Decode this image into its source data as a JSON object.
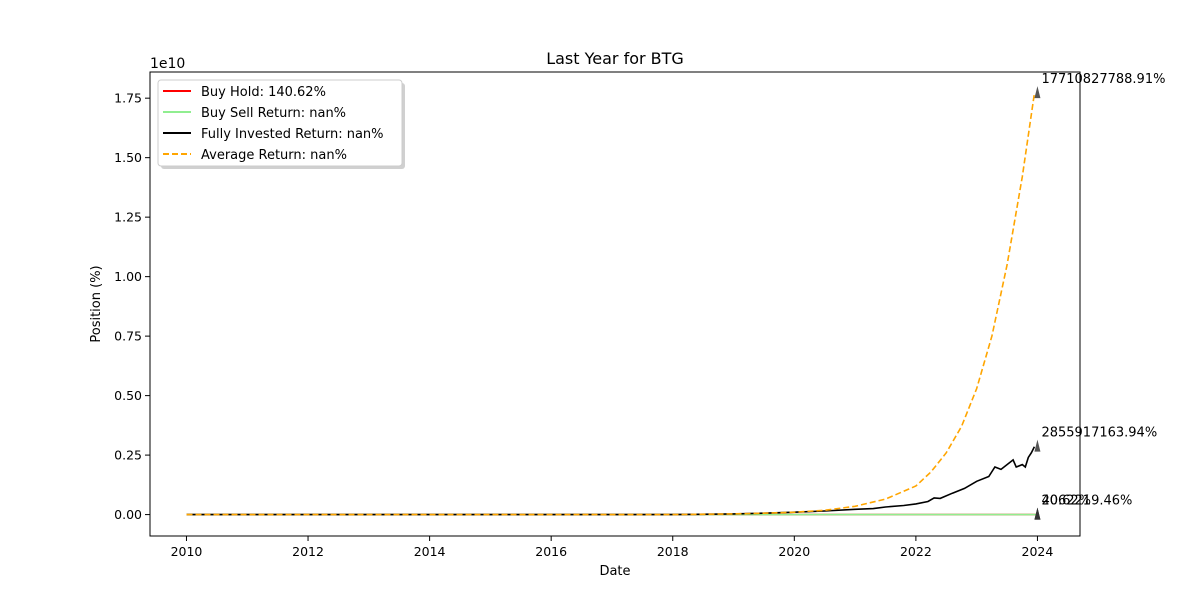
{
  "chart_data": {
    "type": "line",
    "title": "Last Year for BTG",
    "xlabel": "Date",
    "ylabel": "Position (%)",
    "y_scale_label": "1e10",
    "xlim": [
      2009.4,
      2024.7
    ],
    "ylim": [
      -0.09,
      1.86
    ],
    "y_unit_multiplier": "1e10",
    "x_ticks": [
      2010,
      2012,
      2014,
      2016,
      2018,
      2020,
      2022,
      2024
    ],
    "y_ticks": [
      0.0,
      0.25,
      0.5,
      0.75,
      1.0,
      1.25,
      1.5,
      1.75
    ],
    "y_tick_labels": [
      "0.00",
      "0.25",
      "0.50",
      "0.75",
      "1.00",
      "1.25",
      "1.50",
      "1.75"
    ],
    "grid": false,
    "legend_position": "upper-left",
    "series": [
      {
        "name": "Buy Hold: 140.62%",
        "color": "#ff0000",
        "style": "solid",
        "x": [
          2010.0,
          2024.0
        ],
        "y": [
          0.0,
          0.0
        ]
      },
      {
        "name": "Buy Sell Return: nan%",
        "color": "#90ee90",
        "style": "solid",
        "x": [
          2010.0,
          2024.0
        ],
        "y": [
          0.0,
          0.0
        ]
      },
      {
        "name": "Fully Invested Return: nan%",
        "color": "#000000",
        "style": "solid",
        "x": [
          2010.0,
          2018.0,
          2019.0,
          2019.5,
          2020.0,
          2020.5,
          2021.0,
          2021.3,
          2021.5,
          2021.8,
          2022.0,
          2022.2,
          2022.3,
          2022.4,
          2022.6,
          2022.8,
          2023.0,
          2023.2,
          2023.3,
          2023.4,
          2023.6,
          2023.65,
          2023.75,
          2023.8,
          2023.85,
          2023.9,
          2023.95
        ],
        "y": [
          0.0,
          0.0,
          0.003,
          0.006,
          0.01,
          0.015,
          0.022,
          0.025,
          0.032,
          0.038,
          0.045,
          0.055,
          0.07,
          0.068,
          0.09,
          0.11,
          0.14,
          0.16,
          0.2,
          0.19,
          0.23,
          0.2,
          0.21,
          0.2,
          0.24,
          0.26,
          0.285
        ]
      },
      {
        "name": "Average Return: nan%",
        "color": "#ffa500",
        "style": "dashed",
        "x": [
          2010.0,
          2012.0,
          2014.0,
          2016.0,
          2018.0,
          2019.0,
          2019.5,
          2020.0,
          2020.5,
          2021.0,
          2021.5,
          2022.0,
          2022.25,
          2022.5,
          2022.75,
          2023.0,
          2023.25,
          2023.5,
          2023.75,
          2023.95
        ],
        "y": [
          0.0,
          0.0,
          0.0,
          0.0,
          0.0,
          0.003,
          0.006,
          0.01,
          0.018,
          0.035,
          0.065,
          0.12,
          0.18,
          0.26,
          0.37,
          0.53,
          0.75,
          1.05,
          1.42,
          1.77
        ]
      }
    ],
    "annotations": [
      {
        "text": "17710827788.91%",
        "x": 2024.0,
        "y": 1.771
      },
      {
        "text": "2855917163.94%",
        "x": 2024.0,
        "y": 0.2856
      },
      {
        "text": "40.62%",
        "x": 2024.0,
        "y": 0.0
      },
      {
        "text": "2062219.46%",
        "x": 2024.0,
        "y": 0.0
      }
    ]
  }
}
